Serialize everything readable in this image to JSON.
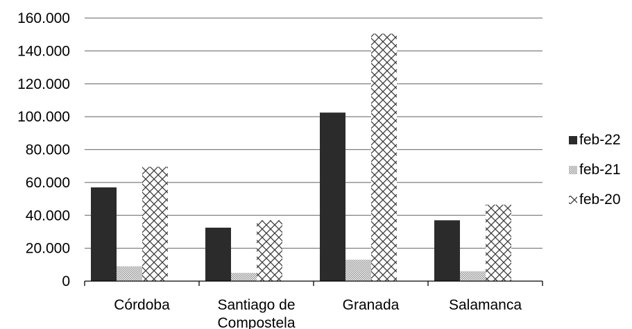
{
  "chart_data": {
    "type": "bar",
    "title": "",
    "xlabel": "",
    "ylabel": "",
    "categories": [
      [
        "Córdoba"
      ],
      [
        "Santiago de",
        "Compostela"
      ],
      [
        "Granada"
      ],
      [
        "Salamanca"
      ]
    ],
    "series": [
      {
        "name": "feb-22",
        "pattern": "solid",
        "values": [
          57000,
          32500,
          102500,
          37000
        ]
      },
      {
        "name": "feb-21",
        "pattern": "dots",
        "values": [
          9000,
          5000,
          13000,
          6000
        ]
      },
      {
        "name": "feb-20",
        "pattern": "crosshatch",
        "values": [
          69500,
          37000,
          150500,
          46500
        ]
      }
    ],
    "ylim": [
      0,
      160000
    ],
    "yticks": [
      0,
      20000,
      40000,
      60000,
      80000,
      100000,
      120000,
      140000,
      160000
    ],
    "ytick_labels": [
      "0",
      "20.000",
      "40.000",
      "60.000",
      "80.000",
      "100.000",
      "120.000",
      "140.000",
      "160.000"
    ],
    "grid": true,
    "legend_position": "right",
    "colors": {
      "solid": "#2b2b2b",
      "dots": "#8c8c8c",
      "hatch": "#3a3a3a",
      "grid": "#7f7f7f"
    }
  }
}
